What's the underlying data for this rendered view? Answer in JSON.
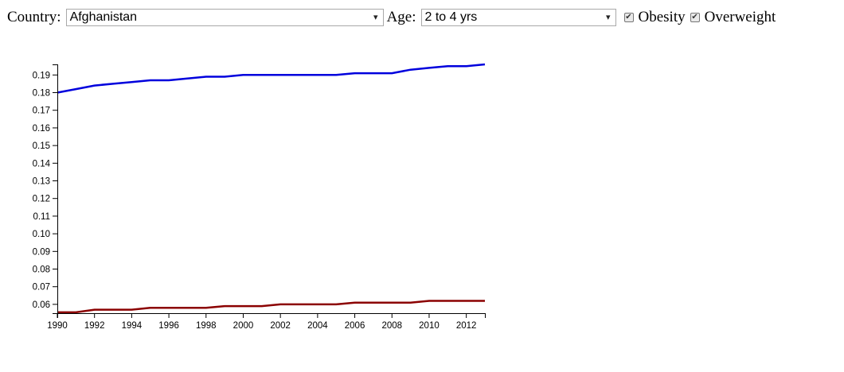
{
  "controls": {
    "country_label": "Country:",
    "country_value": "Afghanistan",
    "age_label": "Age:",
    "age_value": "2 to 4 yrs",
    "dropdown_arrow": "▾",
    "checks": [
      {
        "label": "Obesity",
        "checked": true
      },
      {
        "label": "Overweight",
        "checked": true
      }
    ],
    "check_glyph": "✔"
  },
  "chart_data": {
    "type": "line",
    "title": "",
    "xlabel": "",
    "ylabel": "",
    "xlim": [
      1990,
      2013
    ],
    "ylim": [
      0.055,
      0.196
    ],
    "x_ticks": [
      "1990",
      "1992",
      "1994",
      "1996",
      "1998",
      "2000",
      "2002",
      "2004",
      "2006",
      "2008",
      "2010",
      "2012"
    ],
    "y_ticks": [
      "0.06",
      "0.07",
      "0.08",
      "0.09",
      "0.10",
      "0.11",
      "0.12",
      "0.13",
      "0.14",
      "0.15",
      "0.16",
      "0.17",
      "0.18",
      "0.19"
    ],
    "x": [
      1990,
      1991,
      1992,
      1993,
      1994,
      1995,
      1996,
      1997,
      1998,
      1999,
      2000,
      2001,
      2002,
      2003,
      2004,
      2005,
      2006,
      2007,
      2008,
      2009,
      2010,
      2011,
      2012,
      2013
    ],
    "series": [
      {
        "color": "#0000dd",
        "values": [
          0.18,
          0.182,
          0.184,
          0.185,
          0.186,
          0.187,
          0.187,
          0.188,
          0.189,
          0.189,
          0.19,
          0.19,
          0.19,
          0.19,
          0.19,
          0.19,
          0.191,
          0.191,
          0.191,
          0.193,
          0.194,
          0.195,
          0.195,
          0.196
        ]
      },
      {
        "color": "#8b0000",
        "values": [
          0.0555,
          0.0555,
          0.057,
          0.057,
          0.057,
          0.058,
          0.058,
          0.058,
          0.058,
          0.059,
          0.059,
          0.059,
          0.06,
          0.06,
          0.06,
          0.06,
          0.061,
          0.061,
          0.061,
          0.061,
          0.062,
          0.062,
          0.062,
          0.062
        ]
      }
    ],
    "grid": false,
    "legend": "none"
  }
}
